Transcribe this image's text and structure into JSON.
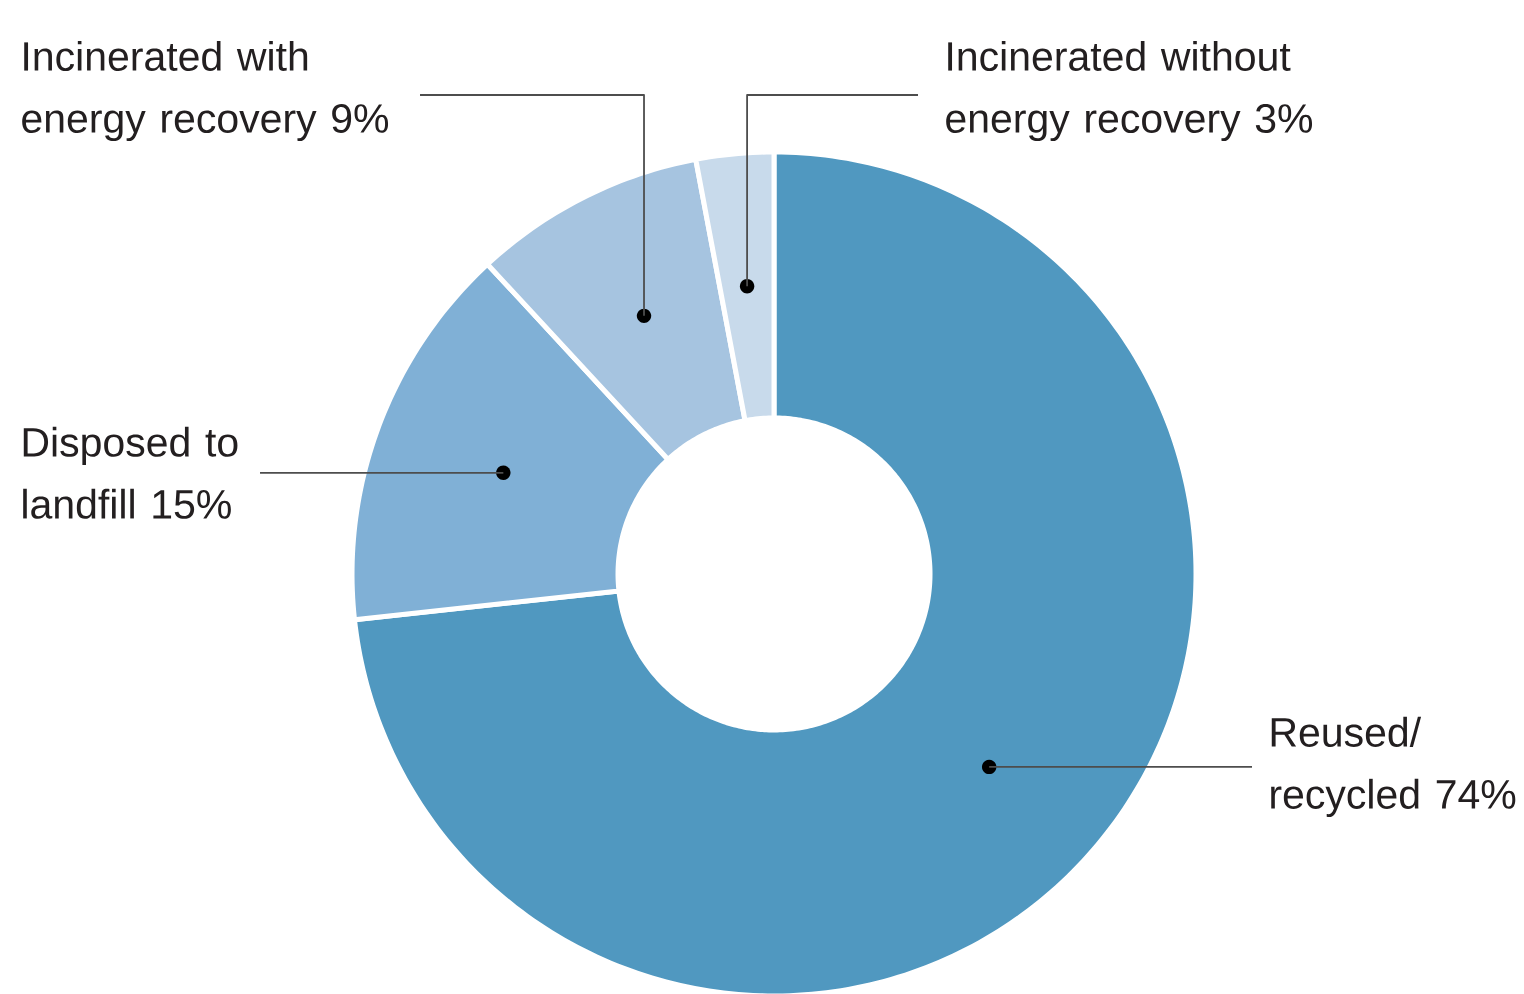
{
  "chart_data": {
    "type": "donut",
    "categories": [
      "Reused/recycled 74%",
      "Disposed to landfill 15%",
      "Incinerated with energy recovery 9%",
      "Incinerated without energy recovery 3%"
    ],
    "values": [
      74,
      15,
      9,
      3
    ],
    "colors": [
      "#5098c0",
      "#80b0d6",
      "#a6c4e0",
      "#c8daeb"
    ]
  }
}
